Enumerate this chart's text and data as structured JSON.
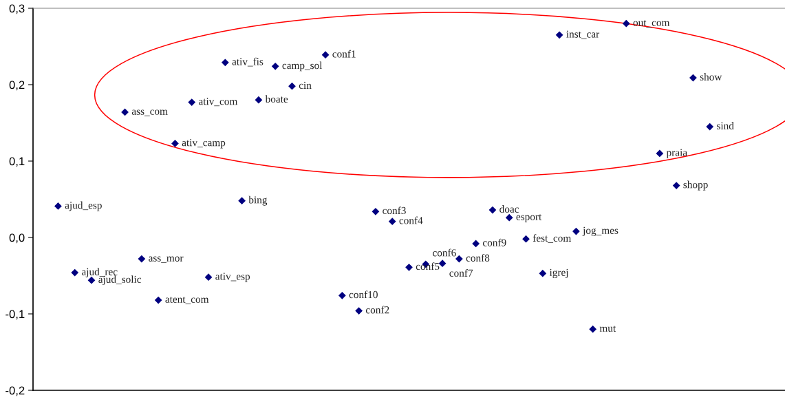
{
  "chart_data": {
    "type": "scatter",
    "marker": "diamond",
    "grid": false,
    "legend": false,
    "tick_labels": "y",
    "categories": [
      null,
      null,
      null,
      null,
      null,
      null,
      null,
      null,
      null,
      null,
      null,
      null,
      null,
      null,
      null,
      null,
      null,
      null,
      null,
      null,
      null,
      null,
      null,
      null,
      null,
      null,
      null,
      null,
      null,
      null,
      null,
      null,
      null,
      null,
      null,
      null,
      null,
      null,
      null,
      null,
      null,
      null,
      null,
      null,
      null
    ],
    "ylim": [
      -0.2,
      0.3
    ],
    "yticks": [
      {
        "value": -0.2,
        "label": "-0,2"
      },
      {
        "value": -0.1,
        "label": "-0,1"
      },
      {
        "value": 0.0,
        "label": "0,0"
      },
      {
        "value": 0.1,
        "label": "0,1"
      },
      {
        "value": 0.2,
        "label": "0,2"
      },
      {
        "value": 0.3,
        "label": "0,3"
      }
    ],
    "series": [
      {
        "color": "#000080",
        "values": [
          null,
          0.041,
          -0.046,
          -0.056,
          null,
          0.164,
          -0.028,
          -0.082,
          0.123,
          0.177,
          -0.052,
          0.229,
          0.048,
          0.18,
          0.224,
          0.198,
          null,
          0.239,
          -0.076,
          -0.096,
          0.034,
          0.021,
          -0.039,
          -0.035,
          -0.034,
          -0.028,
          -0.008,
          0.036,
          0.026,
          -0.002,
          -0.047,
          0.265,
          0.008,
          -0.12,
          null,
          0.28,
          null,
          0.11,
          0.068,
          0.209,
          0.145,
          null,
          null,
          null,
          null
        ],
        "value_labels": [
          null,
          "ajud_esp",
          "ajud_rec",
          "ajud_solic",
          null,
          "ass_com",
          "ass_mor",
          "atent_com",
          "ativ_camp",
          "ativ_com",
          "ativ_esp",
          "ativ_fis",
          "bing",
          "boate",
          "camp_sol",
          "cin",
          null,
          "conf1",
          "conf10",
          "conf2",
          "conf3",
          "conf4",
          "conf5",
          "conf6",
          "conf7",
          "conf8",
          "conf9",
          "doac",
          "esport",
          "fest_com",
          "igrej",
          "inst_car",
          "jog_mes",
          "mut",
          null,
          "out_com",
          null,
          "praia",
          "shopp",
          "show",
          "sind",
          null,
          null,
          null,
          null
        ]
      }
    ]
  }
}
